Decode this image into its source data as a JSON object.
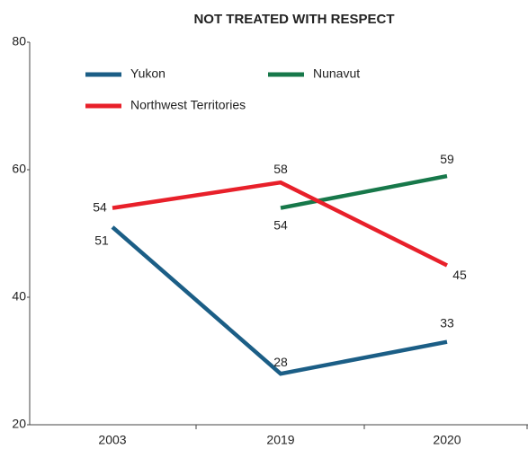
{
  "chart_data": {
    "type": "line",
    "title": "NOT TREATED WITH RESPECT",
    "categories": [
      "2003",
      "2019",
      "2020"
    ],
    "series": [
      {
        "name": "Yukon",
        "color": "#1b5e86",
        "values": [
          51,
          28,
          33
        ]
      },
      {
        "name": "Nunavut",
        "color": "#17784a",
        "values": [
          null,
          54,
          59
        ]
      },
      {
        "name": "Northwest Territories",
        "color": "#e8202a",
        "values": [
          54,
          58,
          45
        ]
      }
    ],
    "ylim": [
      20,
      80
    ],
    "yticks": [
      20,
      40,
      60,
      80
    ],
    "grid": false,
    "legend": "top-left"
  }
}
